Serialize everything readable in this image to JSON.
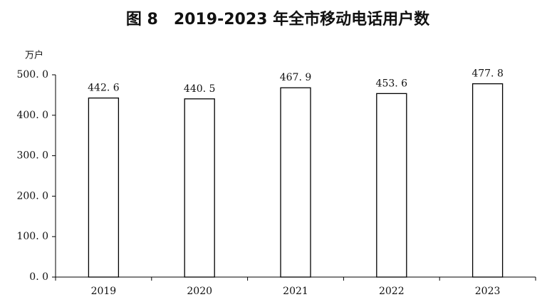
{
  "chart_data": {
    "type": "bar",
    "title": "图 8　2019-2023 年全市移动电话用户数",
    "y_label": "万户",
    "categories": [
      "2019",
      "2020",
      "2021",
      "2022",
      "2023"
    ],
    "values": [
      442.6,
      440.5,
      467.9,
      453.6,
      477.8
    ],
    "value_labels": [
      "442. 6",
      "440. 5",
      "467. 9",
      "453. 6",
      "477. 8"
    ],
    "color": "#ffffff",
    "ylim": [
      0,
      500
    ],
    "yticks": [
      {
        "value": 0,
        "label": "0. 0"
      },
      {
        "value": 100,
        "label": "100. 0"
      },
      {
        "value": 200,
        "label": "200. 0"
      },
      {
        "value": 300,
        "label": "300. 0"
      },
      {
        "value": 400,
        "label": "400. 0"
      },
      {
        "value": 500,
        "label": "500. 0"
      }
    ],
    "grid": false
  }
}
